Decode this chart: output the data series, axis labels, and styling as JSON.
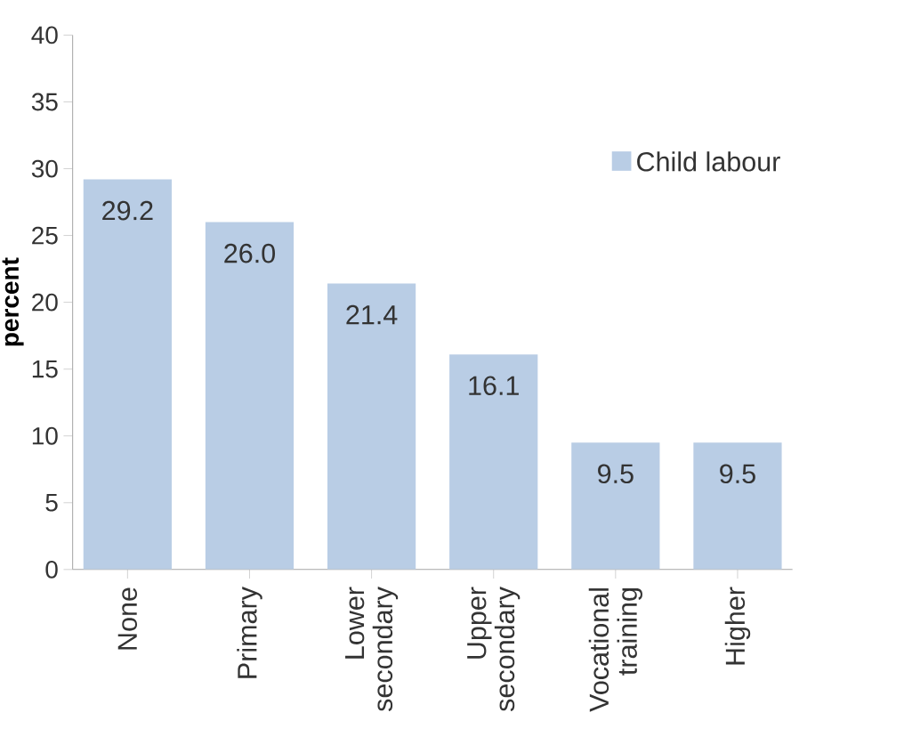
{
  "chart_data": {
    "type": "bar",
    "ylabel": "percent",
    "categories": [
      "None",
      "Primary",
      "Lower secondary",
      "Upper secondary",
      "Vocational training",
      "Higher"
    ],
    "series": [
      {
        "name": "Child labour",
        "color": "#b9cde5",
        "values": [
          29.2,
          26.0,
          21.4,
          16.1,
          9.5,
          9.5
        ],
        "value_labels": [
          "29.2",
          "26.0",
          "21.4",
          "16.1",
          "9.5",
          "9.5"
        ]
      }
    ],
    "ylim": [
      0,
      40
    ],
    "yticks": [
      0,
      5,
      10,
      15,
      20,
      25,
      30,
      35,
      40
    ],
    "legend": "top right",
    "grid": false
  }
}
